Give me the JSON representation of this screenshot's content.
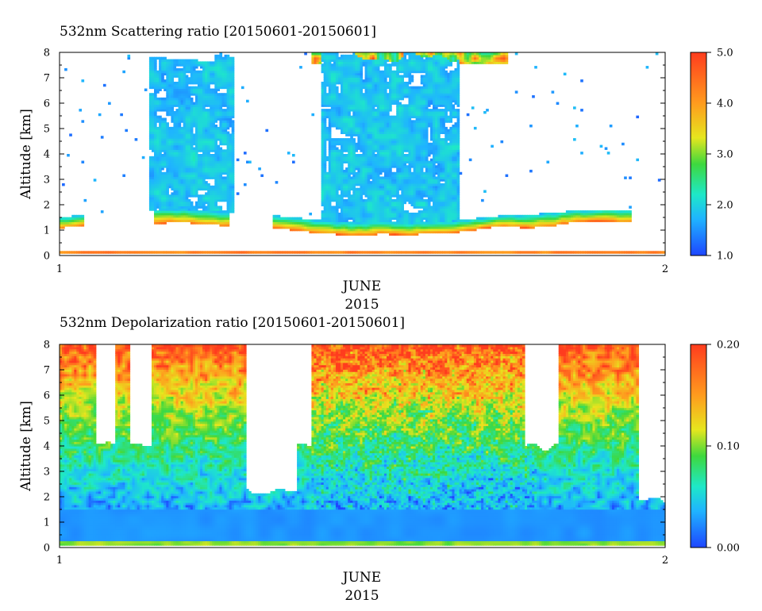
{
  "chart_data": [
    {
      "type": "heatmap",
      "title": "532nm Scattering ratio [20150601-20150601]",
      "ylabel": "Altitude [km]",
      "xlabel": "JUNE",
      "xlabel2": "2015",
      "x_ticks": [
        "1",
        "2"
      ],
      "y_ticks": [
        "0",
        "1",
        "2",
        "3",
        "4",
        "5",
        "6",
        "7",
        "8"
      ],
      "ylim": [
        0,
        8
      ],
      "colorbar": {
        "min": 1.0,
        "max": 5.0,
        "ticks": [
          "1.0",
          "2.0",
          "3.0",
          "4.0",
          "5.0"
        ]
      },
      "colors": [
        "#1e46ff",
        "#1fb4ff",
        "#1ee8c8",
        "#3ed83e",
        "#e6e61e",
        "#ff9b1e",
        "#ff3c1e"
      ]
    },
    {
      "type": "heatmap",
      "title": "532nm Depolarization ratio [20150601-20150601]",
      "ylabel": "Altitude [km]",
      "xlabel": "JUNE",
      "xlabel2": "2015",
      "x_ticks": [
        "1",
        "2"
      ],
      "y_ticks": [
        "0",
        "1",
        "2",
        "3",
        "4",
        "5",
        "6",
        "7",
        "8"
      ],
      "ylim": [
        0,
        8
      ],
      "colorbar": {
        "min": 0.0,
        "max": 0.2,
        "ticks": [
          "0.00",
          "0.10",
          "0.20"
        ]
      },
      "colors": [
        "#1e46ff",
        "#1fb4ff",
        "#1ee8c8",
        "#3ed83e",
        "#e6e61e",
        "#ff9b1e",
        "#ff3c1e"
      ]
    }
  ]
}
